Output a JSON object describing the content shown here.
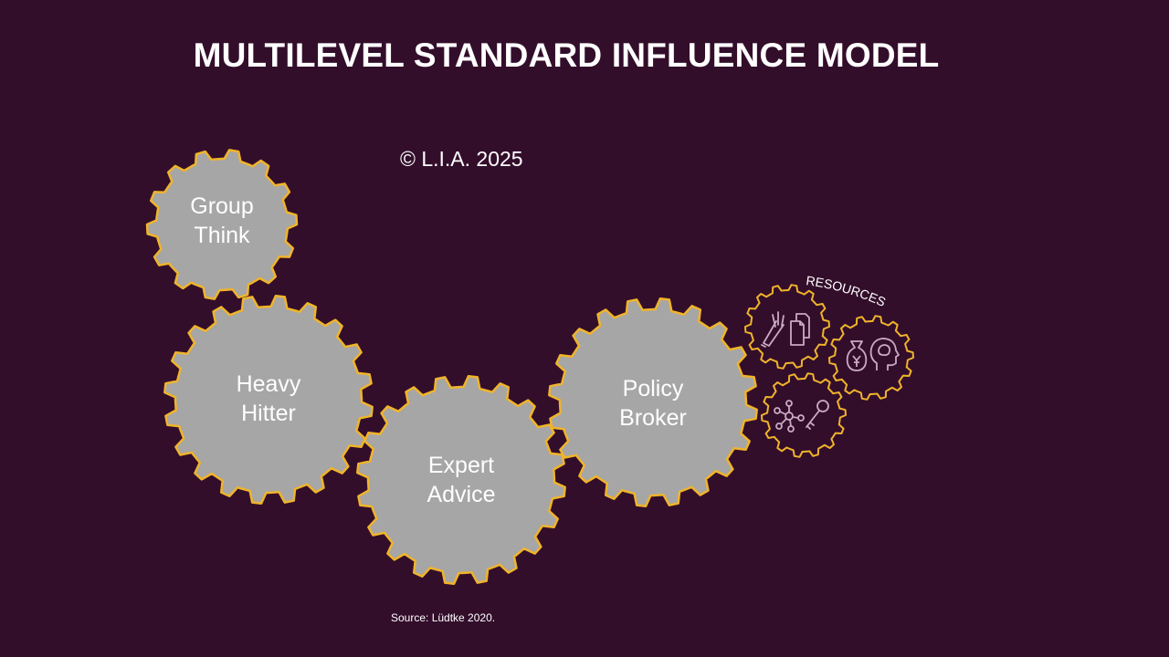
{
  "title": "MULTILEVEL STANDARD INFLUENCE MODEL",
  "copyright": "© L.I.A. 2025",
  "source": "Source: Lüdtke 2020.",
  "colors": {
    "background": "#330e2b",
    "gear_fill": "#a6a6a6",
    "gear_outline": "#f0b42a",
    "icon_stroke": "#c9aac4",
    "text": "#ffffff"
  },
  "gears": [
    {
      "id": "group-think",
      "lines": [
        "Group",
        "Think"
      ]
    },
    {
      "id": "heavy-hitter",
      "lines": [
        "Heavy",
        "Hitter"
      ]
    },
    {
      "id": "expert-advice",
      "lines": [
        "Expert",
        "Advice"
      ]
    },
    {
      "id": "policy-broker",
      "lines": [
        "Policy",
        "Broker"
      ]
    }
  ],
  "resources": {
    "label": "RESOURCES",
    "gears": [
      {
        "id": "documents",
        "icons": [
          "pen-hand-icon",
          "documents-icon"
        ]
      },
      {
        "id": "money-knowledge",
        "icons": [
          "money-bag-icon",
          "head-brain-icon"
        ]
      },
      {
        "id": "network-access",
        "icons": [
          "network-icon",
          "key-icon"
        ]
      }
    ]
  }
}
